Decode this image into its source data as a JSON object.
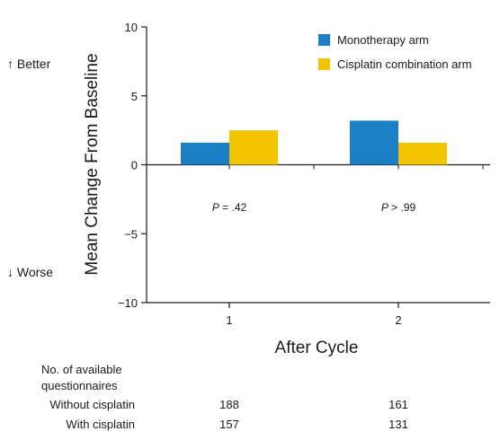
{
  "chart_data": {
    "type": "bar",
    "xlabel": "After Cycle",
    "ylabel": "Mean Change From Baseline",
    "categories": [
      "1",
      "2"
    ],
    "series": [
      {
        "name": "Monotherapy arm",
        "values": [
          1.6,
          3.2
        ],
        "color": "#1a7fc4"
      },
      {
        "name": "Cisplatin combination arm",
        "values": [
          2.5,
          1.6
        ],
        "color": "#f2c500"
      }
    ],
    "ylim": [
      -10,
      10
    ],
    "yticks": [
      10,
      5,
      0,
      -5,
      -10
    ],
    "ytick_labels": [
      "10",
      "5",
      "0",
      "−5",
      "−10"
    ],
    "legend_position": "top-right",
    "grid": false,
    "annotations": [
      {
        "label": "P = .42",
        "prefix": "P",
        "rest": " = .42"
      },
      {
        "label": "P > .99",
        "prefix": "P",
        "rest": " > .99"
      }
    ],
    "direction_labels": {
      "better": "↑ Better",
      "worse": "↓ Worse"
    },
    "table": {
      "header": [
        "No. of available",
        "questionnaires"
      ],
      "rows": [
        {
          "label": "Without cisplatin",
          "values": [
            "188",
            "161"
          ]
        },
        {
          "label": "With cisplatin",
          "values": [
            "157",
            "131"
          ]
        }
      ]
    }
  }
}
